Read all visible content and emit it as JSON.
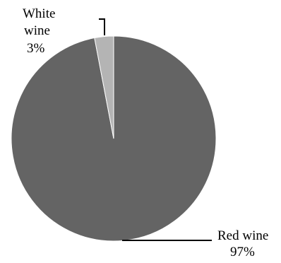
{
  "chart_data": {
    "type": "pie",
    "slices": [
      {
        "label_line1": "Red wine",
        "label_line2": "97%",
        "value": 97,
        "color": "#646464"
      },
      {
        "label_line1": "White",
        "label_line1b": "wine",
        "label_line2": "3%",
        "value": 3,
        "color": "#b4b4b4"
      }
    ],
    "start_angle_deg": 0,
    "direction": "counterclockwise",
    "legend": "none",
    "slice_border_color": "#ffffff",
    "leader_line_color": "#000000"
  }
}
